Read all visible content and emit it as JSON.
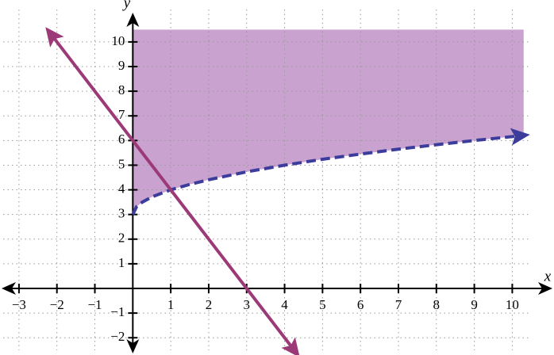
{
  "chart_data": {
    "type": "line",
    "xlabel": "x",
    "ylabel": "y",
    "xlim": [
      -3.5,
      11.1
    ],
    "ylim": [
      -2.7,
      11.7
    ],
    "xticks": [
      {
        "value": -3,
        "label": "−3"
      },
      {
        "value": -2,
        "label": "−2"
      },
      {
        "value": -1,
        "label": "−1"
      },
      1,
      2,
      3,
      4,
      5,
      6,
      7,
      8,
      9,
      10
    ],
    "yticks": [
      {
        "value": -2,
        "label": "−2"
      },
      {
        "value": -1,
        "label": "−1"
      },
      1,
      2,
      3,
      4,
      5,
      6,
      7,
      8,
      9,
      10
    ],
    "grid": true,
    "shade": {
      "color": "#c9a2cf",
      "x": [
        0,
        10.3
      ],
      "top": 10.5
    },
    "series": [
      {
        "color": "#3c3c9c",
        "dashed": true,
        "arrows": "end",
        "x": [
          0,
          0.1,
          0.25,
          0.5,
          1,
          1.5,
          2,
          3,
          4,
          5,
          6,
          7,
          8,
          9,
          10,
          10.3
        ],
        "values": [
          3,
          3.32,
          3.5,
          3.71,
          4,
          4.22,
          4.41,
          4.73,
          5,
          5.24,
          5.45,
          5.65,
          5.83,
          6,
          6.16,
          6.21
        ]
      },
      {
        "color": "#9c3a78",
        "dashed": false,
        "arrows": "both",
        "x": [
          -2.2,
          4.3
        ],
        "values": [
          10.4,
          -2.6
        ]
      }
    ]
  }
}
